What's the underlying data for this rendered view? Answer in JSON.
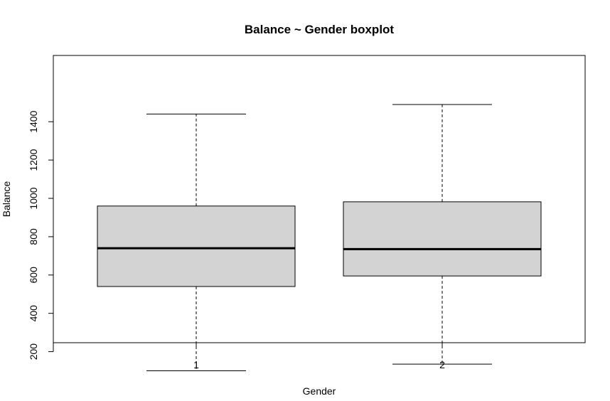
{
  "chart_data": {
    "type": "boxplot",
    "title": "Balance ~ Gender boxplot",
    "xlabel": "Gender",
    "ylabel": "Balance",
    "categories": [
      "1",
      "2"
    ],
    "ylim": [
      50,
      1500
    ],
    "y_ticks": [
      200,
      400,
      600,
      800,
      1000,
      1200,
      1400
    ],
    "boxes": [
      {
        "category": "1",
        "min": 100,
        "q1": 540,
        "median": 740,
        "q3": 960,
        "max": 1440
      },
      {
        "category": "2",
        "min": 135,
        "q1": 595,
        "median": 735,
        "q3": 982,
        "max": 1490
      }
    ],
    "box_fill": "#d3d3d3",
    "grid": false
  }
}
